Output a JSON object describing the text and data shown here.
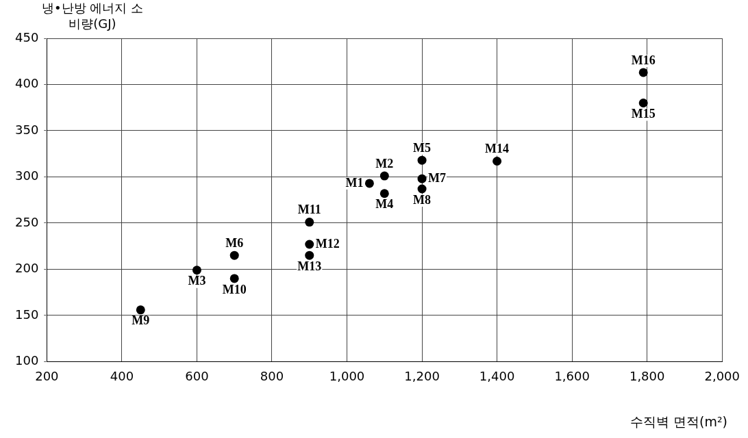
{
  "chart_data": {
    "type": "scatter",
    "xlabel": "수직벽 면적(m²)",
    "ylabel": "냉•난방 에너지 소비량(GJ)",
    "series": [
      {
        "color": "#000000",
        "x": [
          1060,
          1100,
          600,
          1100,
          1200,
          700,
          1200,
          1200,
          450,
          700,
          900,
          900,
          900,
          1400,
          1790,
          1790
        ],
        "values": [
          293,
          301,
          199,
          282,
          318,
          215,
          298,
          287,
          156,
          190,
          251,
          227,
          215,
          317,
          380,
          413
        ]
      }
    ],
    "xlim": [
      200,
      2000
    ],
    "xticks": [
      200,
      400,
      600,
      800,
      {
        "value": 1000,
        "label": "1,000"
      },
      {
        "value": 1200,
        "label": "1,200"
      },
      {
        "value": 1400,
        "label": "1,400"
      },
      {
        "value": 1600,
        "label": "1,600"
      },
      {
        "value": 1800,
        "label": "1,800"
      },
      {
        "value": 2000,
        "label": "2,000"
      }
    ],
    "ylim": [
      100,
      450
    ],
    "yticks": [
      100,
      150,
      200,
      250,
      300,
      350,
      400,
      450
    ],
    "grid": true,
    "marker": "circle",
    "annotations": [
      {
        "text": "M1",
        "x": 1060,
        "y": 293
      },
      {
        "text": "M2",
        "x": 1100,
        "y": 301
      },
      {
        "text": "M3",
        "x": 600,
        "y": 199
      },
      {
        "text": "M4",
        "x": 1100,
        "y": 282
      },
      {
        "text": "M5",
        "x": 1200,
        "y": 318
      },
      {
        "text": "M6",
        "x": 700,
        "y": 215
      },
      {
        "text": "M7",
        "x": 1200,
        "y": 298
      },
      {
        "text": "M8",
        "x": 1200,
        "y": 287
      },
      {
        "text": "M9",
        "x": 450,
        "y": 156
      },
      {
        "text": "M10",
        "x": 700,
        "y": 190
      },
      {
        "text": "M11",
        "x": 900,
        "y": 251
      },
      {
        "text": "M12",
        "x": 900,
        "y": 227
      },
      {
        "text": "M13",
        "x": 900,
        "y": 215
      },
      {
        "text": "M14",
        "x": 1400,
        "y": 317
      },
      {
        "text": "M15",
        "x": 1790,
        "y": 380
      },
      {
        "text": "M16",
        "x": 1790,
        "y": 413
      }
    ]
  }
}
